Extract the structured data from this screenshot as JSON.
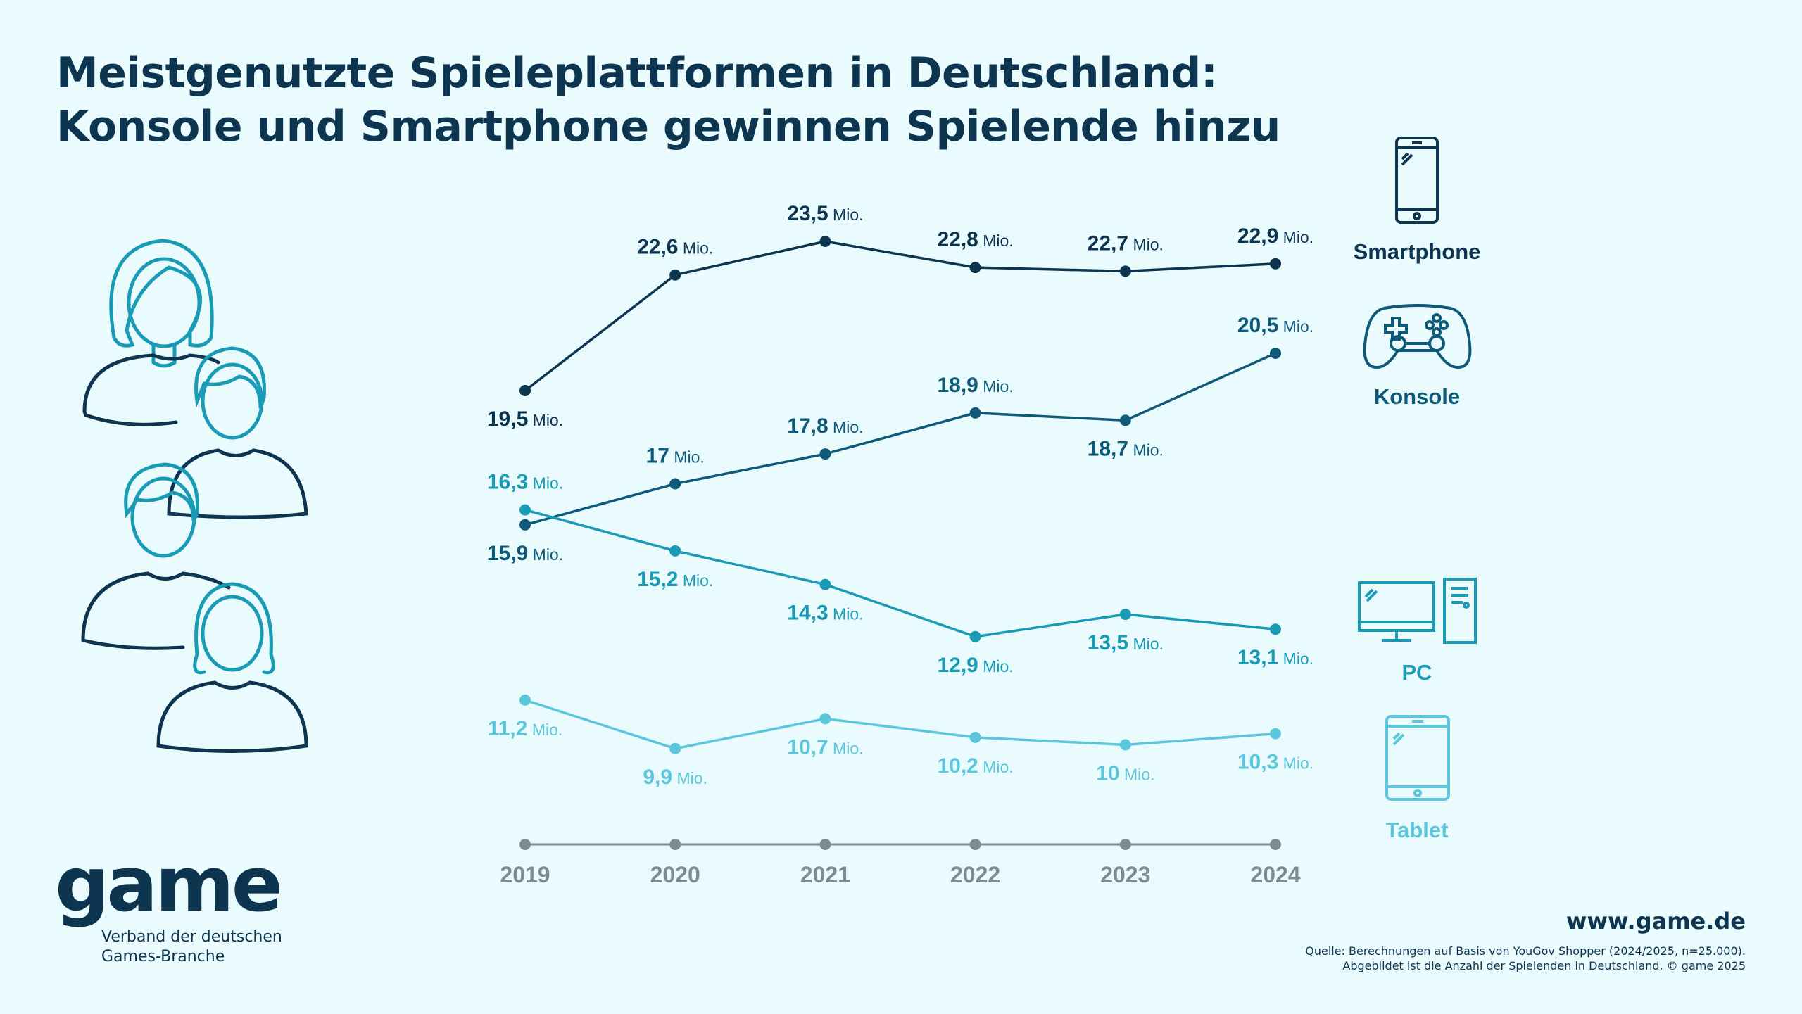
{
  "title": {
    "line1": "Meistgenutzte Spieleplattformen in Deutschland:",
    "line2": "Konsole und Smartphone gewinnen Spielende hinzu"
  },
  "chart_data": {
    "type": "line",
    "x": [
      "2019",
      "2020",
      "2021",
      "2022",
      "2023",
      "2024"
    ],
    "unit": "Mio.",
    "grid": false,
    "series": [
      {
        "name": "Smartphone",
        "color": "#0d3550",
        "values": [
          19.5,
          22.6,
          23.5,
          22.8,
          22.7,
          22.9
        ],
        "labels": [
          "19,5",
          "22,6",
          "23,5",
          "22,8",
          "22,7",
          "22,9"
        ],
        "icon": "smartphone-icon"
      },
      {
        "name": "Konsole",
        "color": "#0e5a78",
        "values": [
          15.9,
          17,
          17.8,
          18.9,
          18.7,
          20.5
        ],
        "labels": [
          "15,9",
          "17",
          "17,8",
          "18,9",
          "18,7",
          "20,5"
        ],
        "icon": "gamepad-icon"
      },
      {
        "name": "PC",
        "color": "#1a9bb5",
        "values": [
          16.3,
          15.2,
          14.3,
          12.9,
          13.5,
          13.1
        ],
        "labels": [
          "16,3",
          "15,2",
          "14,3",
          "12,9",
          "13,5",
          "13,1"
        ],
        "icon": "desktop-pc-icon"
      },
      {
        "name": "Tablet",
        "color": "#5cc7dc",
        "values": [
          11.2,
          9.9,
          10.7,
          10.2,
          10,
          10.3
        ],
        "labels": [
          "11,2",
          "9,9",
          "10,7",
          "10,2",
          "10",
          "10,3"
        ],
        "icon": "tablet-icon"
      }
    ],
    "axis_color": "#7d8b92"
  },
  "logo": {
    "text": "game",
    "sub1": "Verband der deutschen",
    "sub2": "Games-Branche"
  },
  "footer": {
    "url": "www.game.de",
    "source1": "Quelle: Berechnungen auf Basis von YouGov Shopper (2024/2025, n=25.000).",
    "source2": "Abgebildet ist die Anzahl der Spielenden in Deutschland. © game 2025"
  }
}
